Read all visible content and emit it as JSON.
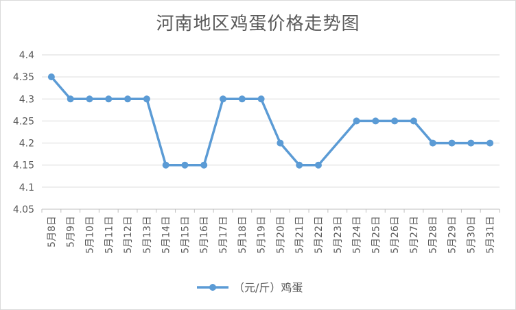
{
  "chart_data": {
    "type": "line",
    "title": "河南地区鸡蛋价格走势图",
    "categories": [
      "5月8日",
      "5月9日",
      "5月10日",
      "5月11日",
      "5月12日",
      "5月13日",
      "5月14日",
      "5月15日",
      "5月16日",
      "5月17日",
      "5月18日",
      "5月19日",
      "5月20日",
      "5月21日",
      "5月22日",
      "5月23日",
      "5月24日",
      "5月25日",
      "5月26日",
      "5月27日",
      "5月28日",
      "5月29日",
      "5月30日",
      "5月31日"
    ],
    "series": [
      {
        "name": "（元/斤）鸡蛋",
        "values": [
          4.35,
          4.3,
          4.3,
          4.3,
          4.3,
          4.3,
          4.15,
          4.15,
          4.15,
          4.3,
          4.3,
          4.3,
          4.2,
          4.15,
          4.15,
          null,
          4.25,
          4.25,
          4.25,
          4.25,
          4.2,
          4.2,
          4.2,
          4.2
        ],
        "color": "#5b9bd5"
      }
    ],
    "yticks": [
      "4.05",
      "4.1",
      "4.15",
      "4.2",
      "4.25",
      "4.3",
      "4.35",
      "4.4"
    ],
    "ylim": [
      4.05,
      4.4
    ],
    "grid": true,
    "legend_position": "bottom",
    "xlabel": "",
    "ylabel": ""
  }
}
